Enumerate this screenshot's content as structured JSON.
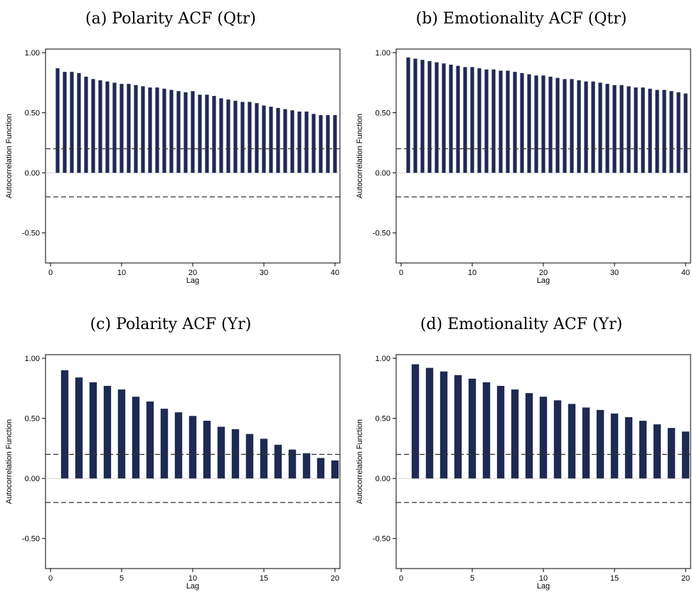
{
  "chart_data": [
    {
      "id": "a",
      "type": "bar",
      "title": "(a) Polarity ACF (Qtr)",
      "xlabel": "Lag",
      "ylabel": "Autocorrelation Function",
      "xlim": [
        0,
        40
      ],
      "ylim": [
        -0.75,
        1.03
      ],
      "xticks": [
        0,
        10,
        20,
        30,
        40
      ],
      "yticks": [
        1.0,
        0.5,
        0.0,
        -0.5
      ],
      "ytick_labels": [
        "1.00",
        "0.50",
        "0.00",
        "-0.50"
      ],
      "confidence_band": [
        0.2,
        -0.2
      ],
      "grid": false,
      "bar_color": "#1e2a52",
      "lags": [
        1,
        2,
        3,
        4,
        5,
        6,
        7,
        8,
        9,
        10,
        11,
        12,
        13,
        14,
        15,
        16,
        17,
        18,
        19,
        20,
        21,
        22,
        23,
        24,
        25,
        26,
        27,
        28,
        29,
        30,
        31,
        32,
        33,
        34,
        35,
        36,
        37,
        38,
        39,
        40
      ],
      "values": [
        0.87,
        0.84,
        0.84,
        0.83,
        0.8,
        0.78,
        0.77,
        0.76,
        0.75,
        0.74,
        0.74,
        0.73,
        0.72,
        0.71,
        0.71,
        0.7,
        0.69,
        0.68,
        0.67,
        0.68,
        0.65,
        0.65,
        0.64,
        0.62,
        0.61,
        0.6,
        0.59,
        0.59,
        0.58,
        0.56,
        0.55,
        0.54,
        0.53,
        0.52,
        0.51,
        0.51,
        0.49,
        0.48,
        0.48,
        0.48
      ]
    },
    {
      "id": "b",
      "type": "bar",
      "title": "(b) Emotionality ACF (Qtr)",
      "xlabel": "Lag",
      "ylabel": "Autocorrelation Function",
      "xlim": [
        0,
        40
      ],
      "ylim": [
        -0.75,
        1.03
      ],
      "xticks": [
        0,
        10,
        20,
        30,
        40
      ],
      "yticks": [
        1.0,
        0.5,
        0.0,
        -0.5
      ],
      "ytick_labels": [
        "1.00",
        "0.50",
        "0.00",
        "-0.50"
      ],
      "confidence_band": [
        0.2,
        -0.2
      ],
      "grid": false,
      "bar_color": "#1e2a52",
      "lags": [
        1,
        2,
        3,
        4,
        5,
        6,
        7,
        8,
        9,
        10,
        11,
        12,
        13,
        14,
        15,
        16,
        17,
        18,
        19,
        20,
        21,
        22,
        23,
        24,
        25,
        26,
        27,
        28,
        29,
        30,
        31,
        32,
        33,
        34,
        35,
        36,
        37,
        38,
        39,
        40
      ],
      "values": [
        0.96,
        0.95,
        0.94,
        0.93,
        0.92,
        0.91,
        0.9,
        0.89,
        0.88,
        0.88,
        0.87,
        0.86,
        0.86,
        0.85,
        0.85,
        0.84,
        0.83,
        0.82,
        0.81,
        0.81,
        0.8,
        0.79,
        0.78,
        0.78,
        0.77,
        0.76,
        0.76,
        0.75,
        0.74,
        0.73,
        0.73,
        0.72,
        0.71,
        0.71,
        0.7,
        0.69,
        0.69,
        0.68,
        0.67,
        0.66
      ]
    },
    {
      "id": "c",
      "type": "bar",
      "title": "(c) Polarity ACF (Yr)",
      "xlabel": "Lag",
      "ylabel": "Autocorrelation Function",
      "xlim": [
        0,
        20
      ],
      "ylim": [
        -0.75,
        1.03
      ],
      "xticks": [
        0,
        5,
        10,
        15,
        20
      ],
      "yticks": [
        1.0,
        0.5,
        0.0,
        -0.5
      ],
      "ytick_labels": [
        "1.00",
        "0.50",
        "0.00",
        "-0.50"
      ],
      "confidence_band": [
        0.2,
        -0.2
      ],
      "grid": false,
      "bar_color": "#1e2a52",
      "lags": [
        1,
        2,
        3,
        4,
        5,
        6,
        7,
        8,
        9,
        10,
        11,
        12,
        13,
        14,
        15,
        16,
        17,
        18,
        19,
        20
      ],
      "values": [
        0.9,
        0.84,
        0.8,
        0.77,
        0.74,
        0.68,
        0.64,
        0.58,
        0.55,
        0.52,
        0.48,
        0.43,
        0.41,
        0.37,
        0.33,
        0.28,
        0.24,
        0.21,
        0.17,
        0.15
      ]
    },
    {
      "id": "d",
      "type": "bar",
      "title": "(d) Emotionality ACF (Yr)",
      "xlabel": "Lag",
      "ylabel": "Autocorrelation Function",
      "xlim": [
        0,
        20
      ],
      "ylim": [
        -0.75,
        1.03
      ],
      "xticks": [
        0,
        5,
        10,
        15,
        20
      ],
      "yticks": [
        1.0,
        0.5,
        0.0,
        -0.5
      ],
      "ytick_labels": [
        "1.00",
        "0.50",
        "0.00",
        "-0.50"
      ],
      "confidence_band": [
        0.2,
        -0.2
      ],
      "grid": false,
      "bar_color": "#1e2a52",
      "lags": [
        1,
        2,
        3,
        4,
        5,
        6,
        7,
        8,
        9,
        10,
        11,
        12,
        13,
        14,
        15,
        16,
        17,
        18,
        19,
        20
      ],
      "values": [
        0.95,
        0.92,
        0.89,
        0.86,
        0.83,
        0.8,
        0.77,
        0.74,
        0.71,
        0.68,
        0.65,
        0.62,
        0.59,
        0.57,
        0.54,
        0.51,
        0.48,
        0.45,
        0.42,
        0.39
      ]
    }
  ]
}
